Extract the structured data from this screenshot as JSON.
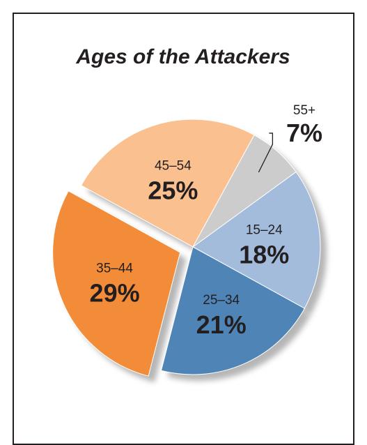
{
  "chart_data": {
    "type": "pie",
    "title": "Ages of the Attackers",
    "slices": [
      {
        "label": "15–24",
        "value": 18,
        "display": "18%",
        "color": "#a3bcdc"
      },
      {
        "label": "25–34",
        "value": 21,
        "display": "21%",
        "color": "#4f84b6"
      },
      {
        "label": "35–44",
        "value": 29,
        "display": "29%",
        "color": "#f28c38",
        "exploded": true
      },
      {
        "label": "45–54",
        "value": 25,
        "display": "25%",
        "color": "#fbc08f"
      },
      {
        "label": "55+",
        "value": 7,
        "display": "7%",
        "color": "#cccccc",
        "callout": true
      }
    ],
    "legend": "none"
  }
}
